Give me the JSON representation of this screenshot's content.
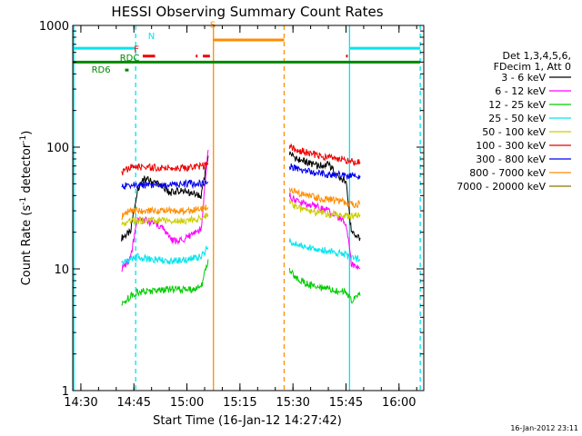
{
  "chart_data": {
    "type": "line",
    "title": "HESSI Observing Summary Count Rates",
    "xlabel": "Start Time (16-Jan-12 14:27:42)",
    "ylabel_main": "Count Rate (s",
    "ylabel_sup1": "-1",
    "ylabel_mid": " detector",
    "ylabel_sup2": "-1",
    "ylabel_end": ")",
    "yscale": "log",
    "ylim": [
      1,
      1000
    ],
    "xlim": [
      "14:27:42",
      "16:07:00"
    ],
    "x_ticks": [
      "14:30",
      "14:45",
      "15:00",
      "15:15",
      "15:30",
      "15:45",
      "16:00"
    ],
    "y_ticks": [
      {
        "value": 1,
        "label": "1"
      },
      {
        "value": 10,
        "label": "10"
      },
      {
        "value": 100,
        "label": "100"
      },
      {
        "value": 1000,
        "label": "1000"
      }
    ],
    "legend_position": "right",
    "legend_header": [
      "Det 1,3,4,5,6,",
      "FDecim 1, Att 0"
    ],
    "series": [
      {
        "name": "3 - 6 keV",
        "color": "#000000",
        "segments": [
          {
            "x": [
              "14:41:30",
              "14:44:00",
              "14:46:00",
              "14:48:00",
              "14:52:00",
              "14:55:00",
              "14:58:00",
              "15:01:00",
              "15:04:00",
              "15:06:00"
            ],
            "y": [
              18,
              20,
              45,
              55,
              50,
              42,
              44,
              42,
              40,
              85
            ]
          },
          {
            "x": [
              "15:29:00",
              "15:31:00",
              "15:34:00",
              "15:37:00",
              "15:40:00",
              "15:43:00",
              "15:45:00",
              "15:46:30",
              "15:49:00"
            ],
            "y": [
              90,
              80,
              75,
              70,
              72,
              58,
              52,
              20,
              18
            ]
          }
        ]
      },
      {
        "name": "6 - 12 keV",
        "color": "#ff00ff",
        "segments": [
          {
            "x": [
              "14:41:30",
              "14:44:00",
              "14:46:00",
              "14:50:00",
              "14:53:00",
              "14:56:00",
              "14:59:00",
              "15:02:00",
              "15:04:00",
              "15:06:00"
            ],
            "y": [
              10,
              12,
              26,
              24,
              22,
              17,
              17,
              20,
              21,
              95
            ]
          },
          {
            "x": [
              "15:29:00",
              "15:31:00",
              "15:34:00",
              "15:37:00",
              "15:40:00",
              "15:43:00",
              "15:45:00",
              "15:46:30",
              "15:49:00"
            ],
            "y": [
              40,
              36,
              34,
              32,
              30,
              26,
              24,
              11,
              10
            ]
          }
        ]
      },
      {
        "name": "12 - 25 keV",
        "color": "#00cc00",
        "segments": [
          {
            "x": [
              "14:41:30",
              "14:44:00",
              "14:46:00",
              "14:50:00",
              "14:55:00",
              "15:00:00",
              "15:04:00",
              "15:06:00"
            ],
            "y": [
              5,
              6,
              6.5,
              6.5,
              6.8,
              6.7,
              7,
              12
            ]
          },
          {
            "x": [
              "15:29:00",
              "15:31:00",
              "15:34:00",
              "15:37:00",
              "15:40:00",
              "15:43:00",
              "15:45:00",
              "15:46:30",
              "15:49:00"
            ],
            "y": [
              10,
              8.5,
              7.5,
              7,
              6.8,
              6.5,
              6.5,
              5.5,
              6
            ]
          }
        ]
      },
      {
        "name": "25 - 50 keV",
        "color": "#00e5ee",
        "segments": [
          {
            "x": [
              "14:41:30",
              "14:44:00",
              "14:46:00",
              "14:50:00",
              "14:55:00",
              "15:00:00",
              "15:04:00",
              "15:06:00"
            ],
            "y": [
              11,
              12,
              12.5,
              12,
              11.5,
              12,
              12.5,
              15
            ]
          },
          {
            "x": [
              "15:29:00",
              "15:31:00",
              "15:34:00",
              "15:37:00",
              "15:40:00",
              "15:43:00",
              "15:45:00",
              "15:46:30",
              "15:49:00"
            ],
            "y": [
              17,
              16,
              15,
              14.5,
              14,
              13.5,
              13,
              12,
              12
            ]
          }
        ]
      },
      {
        "name": "50 - 100 keV",
        "color": "#cccc00",
        "segments": [
          {
            "x": [
              "14:41:30",
              "14:44:00",
              "14:46:00",
              "14:50:00",
              "14:55:00",
              "15:00:00",
              "15:04:00",
              "15:06:00"
            ],
            "y": [
              23,
              25,
              25,
              25,
              25,
              25,
              26,
              28
            ]
          },
          {
            "x": [
              "15:29:00",
              "15:31:00",
              "15:34:00",
              "15:37:00",
              "15:40:00",
              "15:43:00",
              "15:45:00",
              "15:46:30",
              "15:49:00"
            ],
            "y": [
              35,
              32,
              30,
              29,
              28,
              28,
              27,
              27,
              28
            ]
          }
        ]
      },
      {
        "name": "100 - 300 keV",
        "color": "#ee0000",
        "segments": [
          {
            "x": [
              "14:41:30",
              "14:44:00",
              "14:46:00",
              "14:50:00",
              "14:55:00",
              "15:00:00",
              "15:04:00",
              "15:06:00"
            ],
            "y": [
              62,
              68,
              68,
              68,
              68,
              68,
              70,
              72
            ]
          },
          {
            "x": [
              "15:29:00",
              "15:31:00",
              "15:34:00",
              "15:37:00",
              "15:40:00",
              "15:43:00",
              "15:45:00",
              "15:46:30",
              "15:49:00"
            ],
            "y": [
              100,
              95,
              90,
              85,
              82,
              80,
              78,
              76,
              75
            ]
          }
        ]
      },
      {
        "name": "300 - 800 keV",
        "color": "#0000ee",
        "segments": [
          {
            "x": [
              "14:41:30",
              "14:44:00",
              "14:46:00",
              "14:50:00",
              "14:55:00",
              "15:00:00",
              "15:04:00",
              "15:06:00"
            ],
            "y": [
              47,
              49,
              49,
              49,
              49,
              50,
              50,
              52
            ]
          },
          {
            "x": [
              "15:29:00",
              "15:31:00",
              "15:34:00",
              "15:37:00",
              "15:40:00",
              "15:43:00",
              "15:45:00",
              "15:46:30",
              "15:49:00"
            ],
            "y": [
              70,
              66,
              63,
              61,
              60,
              59,
              58,
              58,
              58
            ]
          }
        ]
      },
      {
        "name": "800 - 7000 keV",
        "color": "#ff8c00",
        "segments": [
          {
            "x": [
              "14:41:30",
              "14:44:00",
              "14:46:00",
              "14:50:00",
              "14:55:00",
              "15:00:00",
              "15:04:00",
              "15:06:00"
            ],
            "y": [
              27,
              30,
              30,
              30,
              30,
              30,
              31,
              32
            ]
          },
          {
            "x": [
              "15:29:00",
              "15:31:00",
              "15:34:00",
              "15:37:00",
              "15:40:00",
              "15:43:00",
              "15:45:00",
              "15:46:30",
              "15:49:00"
            ],
            "y": [
              45,
              42,
              40,
              38,
              37,
              36,
              35,
              34,
              34
            ]
          }
        ]
      },
      {
        "name": "7000 - 20000 keV",
        "color": "#8b7500",
        "segments": []
      }
    ],
    "flag_lines": [
      {
        "label": "",
        "color": "#00e5ee",
        "y": 650,
        "segments": [
          [
            "14:27:42",
            "14:45:30"
          ],
          [
            "15:46:00",
            "16:06:00"
          ]
        ]
      },
      {
        "label": "N",
        "color": "#00e5ee",
        "label_at": "14:49:00",
        "label_y": 770
      },
      {
        "label": "S",
        "color": "#ff8c00",
        "y": 760,
        "segments": [
          [
            "15:07:30",
            "15:27:30"
          ]
        ],
        "label_at": "15:06:30",
        "label_y": 960
      },
      {
        "label": "F",
        "color": "#ee0000",
        "y": 560,
        "segments": [
          [
            "14:47:30",
            "14:51:00"
          ],
          [
            "15:02:30",
            "15:03:00"
          ],
          [
            "15:04:30",
            "15:06:30"
          ],
          [
            "15:45:00",
            "15:45:30"
          ]
        ],
        "label_at": "14:45:00",
        "label_y": 600
      },
      {
        "label": "RDC",
        "color": "#008800",
        "y": 500,
        "segments": [
          [
            "14:27:42",
            "16:06:00"
          ]
        ],
        "label_at": "14:41:00",
        "label_y": 510
      },
      {
        "label": "RD6",
        "color": "#008800",
        "y": 430,
        "segments": [
          [
            "14:42:30",
            "14:43:30"
          ]
        ],
        "label_at": "14:33:00",
        "label_y": 410
      }
    ],
    "vertical_lines": [
      {
        "x": "14:28:00",
        "color": "#00e5ee",
        "style": "solid"
      },
      {
        "x": "14:45:30",
        "color": "#00e5ee",
        "style": "dashed"
      },
      {
        "x": "15:07:30",
        "color": "#ff8c00",
        "style": "solid"
      },
      {
        "x": "15:27:30",
        "color": "#ff8c00",
        "style": "dashed"
      },
      {
        "x": "15:46:00",
        "color": "#00e5ee",
        "style": "solid"
      },
      {
        "x": "16:06:00",
        "color": "#00e5ee",
        "style": "dashed"
      }
    ],
    "footer_timestamp": "16-Jan-2012 23:11"
  }
}
